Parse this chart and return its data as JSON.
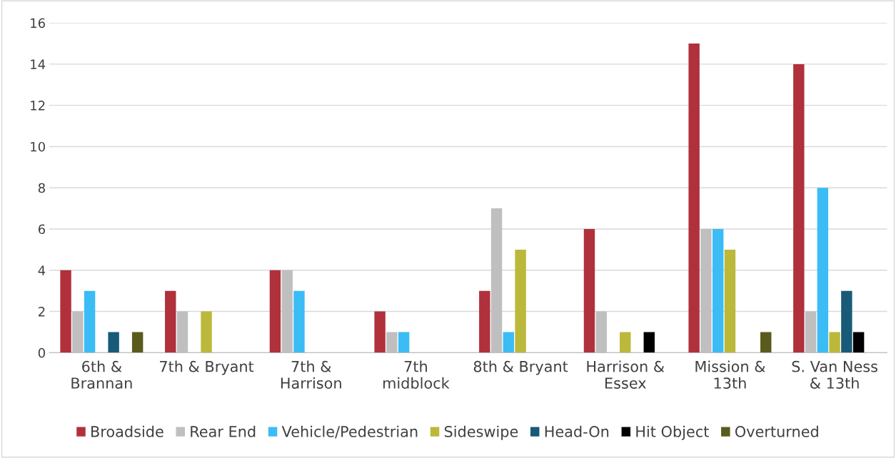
{
  "chart_data": {
    "type": "bar",
    "categories": [
      "6th &\nBrannan",
      "7th & Bryant",
      "7th &\nHarrison",
      "7th\nmidblock",
      "8th & Bryant",
      "Harrison &\nEssex",
      "Mission &\n13th",
      "S. Van Ness\n& 13th"
    ],
    "series": [
      {
        "name": "Broadside",
        "color": "#b0313c",
        "values": [
          4,
          3,
          4,
          2,
          3,
          6,
          15,
          14
        ]
      },
      {
        "name": "Rear End",
        "color": "#bfbfbf",
        "values": [
          2,
          2,
          4,
          1,
          7,
          2,
          6,
          2
        ]
      },
      {
        "name": "Vehicle/Pedestrian",
        "color": "#3bbcf5",
        "values": [
          3,
          0,
          3,
          1,
          1,
          0,
          6,
          8
        ]
      },
      {
        "name": "Sideswipe",
        "color": "#bcb83b",
        "values": [
          0,
          2,
          0,
          0,
          5,
          1,
          5,
          1
        ]
      },
      {
        "name": "Head-On",
        "color": "#185a78",
        "values": [
          1,
          0,
          0,
          0,
          0,
          0,
          0,
          3
        ]
      },
      {
        "name": "Hit Object",
        "color": "#000000",
        "values": [
          0,
          0,
          0,
          0,
          0,
          1,
          0,
          1
        ]
      },
      {
        "name": "Overturned",
        "color": "#5a5a1e",
        "values": [
          1,
          0,
          0,
          0,
          0,
          0,
          1,
          0
        ]
      }
    ],
    "ylim": [
      0,
      16
    ],
    "yticks": [
      0,
      2,
      4,
      6,
      8,
      10,
      12,
      14,
      16
    ],
    "grid": "y",
    "legend": "bottom"
  }
}
